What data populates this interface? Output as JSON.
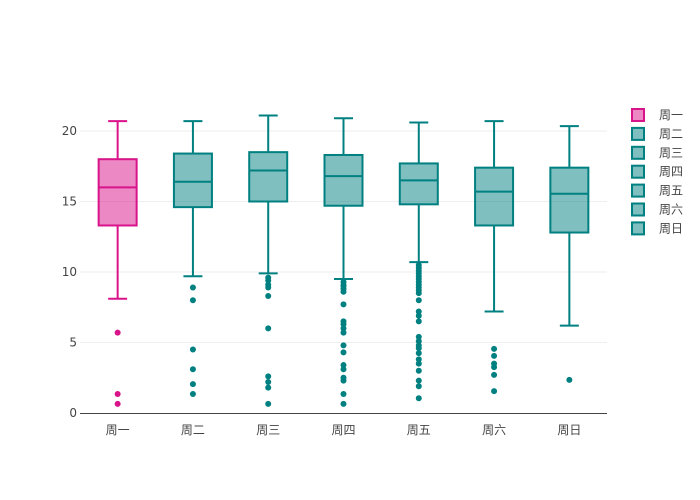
{
  "chart_data": {
    "type": "box",
    "title": "",
    "xlabel": "",
    "ylabel": "",
    "ylim": [
      0,
      22.1
    ],
    "yticks": [
      0,
      5,
      10,
      15,
      20
    ],
    "grid": true,
    "legend_placement": "right",
    "categories": [
      "周一",
      "周二",
      "周三",
      "周四",
      "周五",
      "周六",
      "周日"
    ],
    "series": [
      {
        "name": "周一",
        "color": "#d9138a",
        "lowerfence": 8.1,
        "q1": 13.3,
        "median": 16.0,
        "q3": 18.0,
        "upperfence": 20.7,
        "outliers": [
          5.7,
          1.35,
          0.65
        ]
      },
      {
        "name": "周二",
        "color": "#008080",
        "lowerfence": 9.7,
        "q1": 14.6,
        "median": 16.4,
        "q3": 18.4,
        "upperfence": 20.7,
        "outliers": [
          8.9,
          8.0,
          4.5,
          3.1,
          2.05,
          1.35
        ]
      },
      {
        "name": "周三",
        "color": "#008080",
        "lowerfence": 9.9,
        "q1": 15.0,
        "median": 17.2,
        "q3": 18.5,
        "upperfence": 21.1,
        "outliers": [
          9.6,
          9.4,
          9.1,
          8.9,
          8.3,
          6.0,
          2.6,
          2.2,
          1.8,
          0.65
        ]
      },
      {
        "name": "周四",
        "color": "#008080",
        "lowerfence": 9.5,
        "q1": 14.7,
        "median": 16.8,
        "q3": 18.3,
        "upperfence": 20.9,
        "outliers": [
          9.3,
          9.1,
          9.0,
          8.8,
          8.6,
          7.7,
          6.5,
          6.3,
          6.0,
          5.7,
          4.8,
          4.3,
          3.4,
          3.1,
          2.5,
          2.3,
          1.35,
          0.65
        ]
      },
      {
        "name": "周五",
        "color": "#008080",
        "lowerfence": 10.7,
        "q1": 14.8,
        "median": 16.5,
        "q3": 17.7,
        "upperfence": 20.6,
        "outliers": [
          10.5,
          10.3,
          10.1,
          9.9,
          9.7,
          9.5,
          9.3,
          9.1,
          8.9,
          8.7,
          8.5,
          8.0,
          7.2,
          6.9,
          6.5,
          5.4,
          5.1,
          4.8,
          4.6,
          4.25,
          3.8,
          3.5,
          3.0,
          2.3,
          1.9,
          1.05
        ]
      },
      {
        "name": "周六",
        "color": "#008080",
        "lowerfence": 7.2,
        "q1": 13.3,
        "median": 15.7,
        "q3": 17.4,
        "upperfence": 20.7,
        "outliers": [
          4.55,
          4.05,
          3.5,
          3.25,
          2.7,
          1.55
        ]
      },
      {
        "name": "周日",
        "color": "#008080",
        "lowerfence": 6.2,
        "q1": 12.8,
        "median": 15.55,
        "q3": 17.4,
        "upperfence": 20.35,
        "outliers": [
          2.35
        ]
      }
    ]
  }
}
